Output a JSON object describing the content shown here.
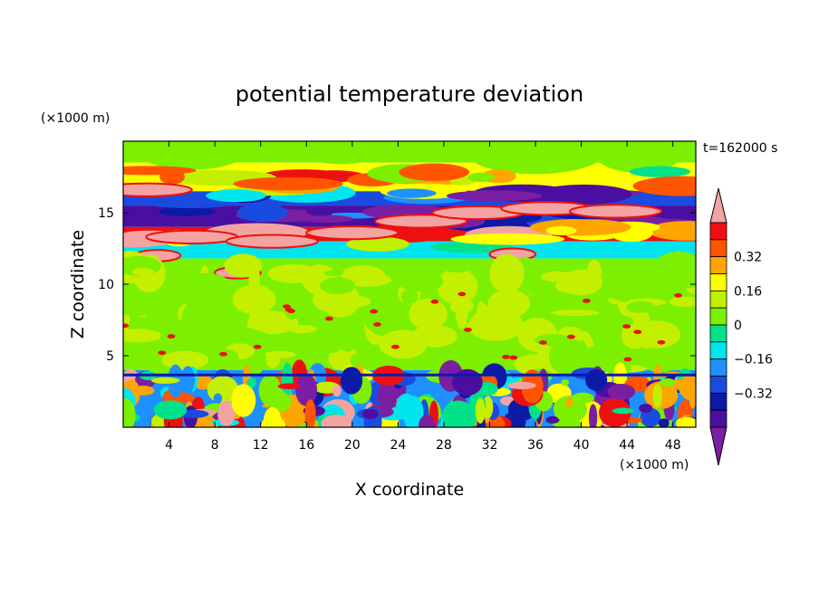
{
  "chart_data": {
    "type": "heatmap",
    "title": "potential temperature deviation",
    "xlabel": "X coordinate",
    "ylabel": "Z coordinate",
    "x_unit": "(×1000 m)",
    "y_unit": "(×1000 m)",
    "time_label": "t=162000 s",
    "xlim": [
      0,
      50
    ],
    "ylim": [
      0,
      20
    ],
    "x_ticks": [
      4,
      8,
      12,
      16,
      20,
      24,
      28,
      32,
      36,
      40,
      44,
      48
    ],
    "y_ticks": [
      5,
      10,
      15
    ],
    "colorbar": {
      "levels": [
        -0.48,
        -0.4,
        -0.32,
        -0.24,
        -0.16,
        -0.08,
        0,
        0.08,
        0.16,
        0.24,
        0.32,
        0.4,
        0.48
      ],
      "colors": [
        "#7b1fa2",
        "#4a0fa0",
        "#0d1aa6",
        "#1a4be0",
        "#1e90ff",
        "#00e5ee",
        "#00e28a",
        "#7cf000",
        "#c2f000",
        "#ffff00",
        "#ffa500",
        "#ff5500",
        "#ee1010",
        "#f4a3a3"
      ],
      "tick_labels": [
        "0.32",
        "0.16",
        "0",
        "−0.16",
        "−0.32"
      ],
      "tick_values": [
        0.32,
        0.16,
        0,
        -0.16,
        -0.32
      ]
    },
    "bands": [
      {
        "z": [
          18.5,
          20
        ],
        "value": 0.02
      },
      {
        "z": [
          16.5,
          18.5
        ],
        "value": 0.22
      },
      {
        "z": [
          15.5,
          16.5
        ],
        "value": -0.3
      },
      {
        "z": [
          14,
          15.5
        ],
        "value": -0.45
      },
      {
        "z": [
          13,
          14
        ],
        "value": 0.4
      },
      {
        "z": [
          11.8,
          13
        ],
        "value": -0.1
      },
      {
        "z": [
          4,
          11.8
        ],
        "value": 0.05
      },
      {
        "z": [
          0,
          4
        ],
        "value": -0.2
      }
    ]
  }
}
